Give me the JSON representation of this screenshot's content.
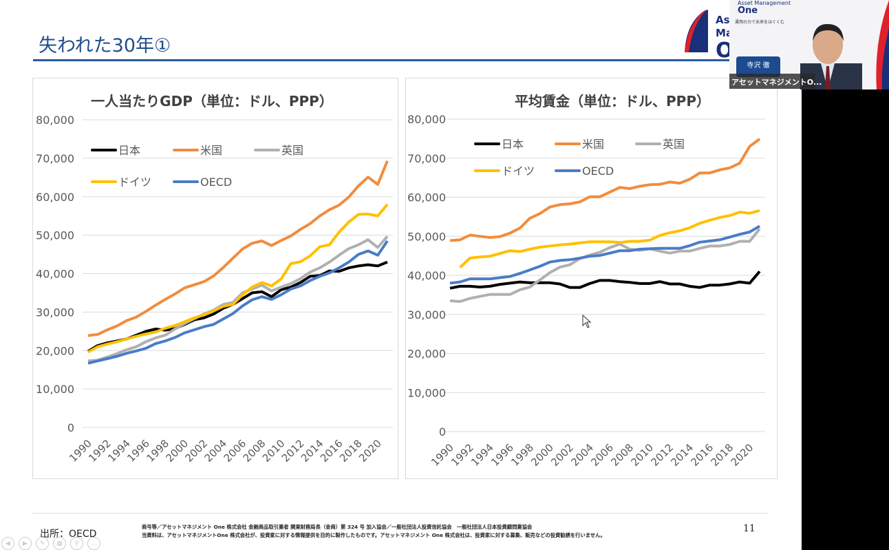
{
  "slide": {
    "title": "失われた30年①",
    "source": "出所：OECD",
    "page_number": "11",
    "legal_line1": "商号等／アセットマネジメント One 株式会社 金融商品取引業者 関東財務局長（金商）第 324 号 加入協会／一般社団法人投資信託協会　一般社団法人日本投資顧問業協会",
    "legal_line2": "当資料は、アセットマネジメントOne 株式会社が、投資家に対する情報提供を目的に製作したものです。アセットマネジメント One 株式会社は、投資家に対する募集、販売などの投資勧誘を行いません。"
  },
  "logo": {
    "line1": "Ass",
    "line2": "Mar",
    "line3": "O"
  },
  "video": {
    "logo_small": "Asset Management",
    "logo_one": "One",
    "tagline": "運用の力で未来をはぐくむ",
    "nameplate": "寺沢 徹",
    "caption": "アセットマネジメントO..."
  },
  "controls": [
    "previous",
    "next",
    "pen",
    "slides",
    "zoom",
    "more"
  ],
  "colors": {
    "日本": "#000000",
    "米国": "#f28c3c",
    "英国": "#b0b0b0",
    "ドイツ": "#ffc000",
    "OECD": "#4a7cc7",
    "title": "#1f4e8c"
  },
  "chart_data": [
    {
      "type": "line",
      "title": "一人当たりGDP（単位：ドル、PPP）",
      "ylim": [
        0,
        80000
      ],
      "yticks": [
        "0",
        "10,000",
        "20,000",
        "30,000",
        "40,000",
        "50,000",
        "60,000",
        "70,000",
        "80,000"
      ],
      "grid": true,
      "legend": "top-left",
      "x": [
        1990,
        1991,
        1992,
        1993,
        1994,
        1995,
        1996,
        1997,
        1998,
        1999,
        2000,
        2001,
        2002,
        2003,
        2004,
        2005,
        2006,
        2007,
        2008,
        2009,
        2010,
        2011,
        2012,
        2013,
        2014,
        2015,
        2016,
        2017,
        2018,
        2019,
        2020,
        2021
      ],
      "xticklabels": [
        "1990",
        "1992",
        "1994",
        "1996",
        "1998",
        "2000",
        "2002",
        "2004",
        "2006",
        "2008",
        "2010",
        "2012",
        "2014",
        "2016",
        "2018",
        "2020"
      ],
      "series": [
        {
          "name": "日本",
          "values": [
            19800,
            21300,
            22000,
            22500,
            23000,
            24000,
            25000,
            25600,
            25300,
            25700,
            26800,
            28000,
            28500,
            29500,
            31000,
            32000,
            33500,
            35000,
            35300,
            34000,
            35800,
            36500,
            37700,
            39300,
            39500,
            40700,
            40600,
            41500,
            42000,
            42300,
            42000,
            43000
          ]
        },
        {
          "name": "米国",
          "values": [
            23900,
            24200,
            25400,
            26400,
            27800,
            28700,
            30200,
            31800,
            33300,
            34700,
            36300,
            37100,
            37900,
            39400,
            41600,
            44000,
            46400,
            47900,
            48500,
            47300,
            48600,
            49800,
            51500,
            53000,
            55000,
            56600,
            57800,
            59900,
            62800,
            65100,
            63200,
            69300
          ]
        },
        {
          "name": "英国",
          "values": [
            17300,
            17500,
            18300,
            19200,
            20200,
            21000,
            22300,
            23300,
            24000,
            25600,
            27000,
            28300,
            29500,
            30500,
            32000,
            32500,
            35000,
            36000,
            37000,
            35500,
            36500,
            37400,
            38700,
            40400,
            41500,
            43000,
            44800,
            46500,
            47500,
            48800,
            46800,
            49700
          ]
        },
        {
          "name": "ドイツ",
          "values": [
            19600,
            21000,
            21700,
            22300,
            23000,
            23700,
            24300,
            24800,
            25800,
            26500,
            27500,
            28500,
            29300,
            30300,
            31500,
            32000,
            34500,
            36500,
            37700,
            36800,
            38600,
            42600,
            43100,
            44600,
            47000,
            47500,
            50800,
            53400,
            55400,
            55500,
            55000,
            58000
          ]
        },
        {
          "name": "OECD",
          "values": [
            16700,
            17300,
            17900,
            18500,
            19300,
            19900,
            20600,
            21800,
            22500,
            23400,
            24600,
            25400,
            26200,
            26800,
            28200,
            29600,
            31600,
            33200,
            34000,
            33300,
            34500,
            36000,
            36800,
            38200,
            39300,
            40200,
            41500,
            43000,
            45000,
            45900,
            44800,
            48500
          ]
        }
      ]
    },
    {
      "type": "line",
      "title": "平均賃金（単位：ドル、PPP）",
      "ylim": [
        0,
        80000
      ],
      "yticks": [
        "0",
        "10,000",
        "20,000",
        "30,000",
        "40,000",
        "50,000",
        "60,000",
        "70,000",
        "80,000"
      ],
      "grid": true,
      "legend": "top-left",
      "x": [
        1990,
        1991,
        1992,
        1993,
        1994,
        1995,
        1996,
        1997,
        1998,
        1999,
        2000,
        2001,
        2002,
        2003,
        2004,
        2005,
        2006,
        2007,
        2008,
        2009,
        2010,
        2011,
        2012,
        2013,
        2014,
        2015,
        2016,
        2017,
        2018,
        2019,
        2020,
        2021
      ],
      "xticklabels": [
        "1990",
        "1992",
        "1994",
        "1996",
        "1998",
        "2000",
        "2002",
        "2004",
        "2006",
        "2008",
        "2010",
        "2012",
        "2014",
        "2016",
        "2018",
        "2020"
      ],
      "series": [
        {
          "name": "日本",
          "values": [
            36700,
            37200,
            37200,
            37000,
            37200,
            37700,
            38000,
            38300,
            38100,
            38100,
            38100,
            37800,
            36900,
            36900,
            37900,
            38700,
            38700,
            38400,
            38200,
            37900,
            37900,
            38400,
            37800,
            37800,
            37200,
            36900,
            37500,
            37500,
            37800,
            38300,
            38000,
            41000
          ]
        },
        {
          "name": "米国",
          "values": [
            48900,
            49100,
            50300,
            50000,
            49700,
            49900,
            50800,
            52100,
            54600,
            55800,
            57500,
            58100,
            58300,
            58800,
            60100,
            60100,
            61300,
            62500,
            62200,
            62800,
            63200,
            63300,
            63900,
            63600,
            64600,
            66200,
            66200,
            67000,
            67500,
            68700,
            73000,
            74900
          ]
        },
        {
          "name": "英国",
          "values": [
            33500,
            33300,
            34100,
            34600,
            35100,
            35100,
            35100,
            36300,
            37000,
            38800,
            40700,
            42100,
            42700,
            44300,
            45200,
            45900,
            47100,
            48000,
            46700,
            46400,
            46800,
            46200,
            45700,
            46200,
            46200,
            46900,
            47500,
            47500,
            47900,
            48700,
            48700,
            51900
          ]
        },
        {
          "name": "ドイツ",
          "values": [
            null,
            42000,
            44400,
            44700,
            44900,
            45600,
            46300,
            46100,
            46700,
            47200,
            47500,
            47800,
            48000,
            48300,
            48600,
            48600,
            48600,
            48400,
            48700,
            48700,
            49000,
            50200,
            50900,
            51400,
            52200,
            53300,
            54100,
            54800,
            55300,
            56200,
            55900,
            56600
          ]
        },
        {
          "name": "OECD",
          "values": [
            38000,
            38300,
            39100,
            39100,
            39100,
            39400,
            39700,
            40500,
            41400,
            42300,
            43400,
            43800,
            44000,
            44400,
            44900,
            45100,
            45700,
            46300,
            46300,
            46700,
            46800,
            46900,
            46900,
            46900,
            47600,
            48500,
            48800,
            49100,
            49800,
            50500,
            51100,
            52600
          ]
        }
      ]
    }
  ]
}
